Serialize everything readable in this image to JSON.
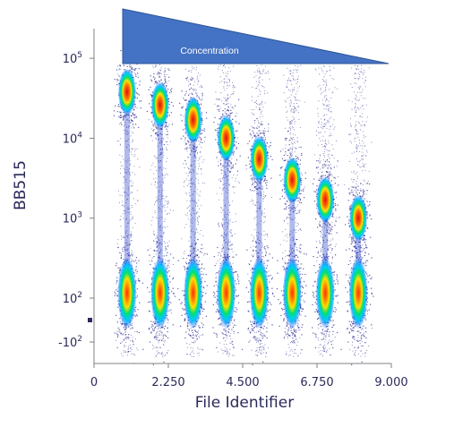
{
  "chart_data": {
    "type": "scatter",
    "subtype": "flow-cytometry-density-dot-plot",
    "xlabel": "File Identifier",
    "ylabel": "BB515",
    "x_scale": "linear",
    "y_scale": "biexponential",
    "xlim": [
      0,
      9000
    ],
    "ylim": [
      -300,
      300000
    ],
    "x_ticks": [
      {
        "value": 0,
        "label": "0"
      },
      {
        "value": 2250,
        "label": "2.250"
      },
      {
        "value": 4500,
        "label": "4.500"
      },
      {
        "value": 6750,
        "label": "6.750"
      },
      {
        "value": 9000,
        "label": "9.000"
      }
    ],
    "y_ticks": [
      {
        "value": 100000,
        "base": "10",
        "exp": "5"
      },
      {
        "value": 10000,
        "base": "10",
        "exp": "4"
      },
      {
        "value": 1000,
        "base": "10",
        "exp": "3"
      },
      {
        "value": 100,
        "base": "10",
        "exp": "2"
      },
      {
        "value": -100,
        "base": "-10",
        "exp": "2"
      }
    ],
    "annotation": {
      "text": "Concentration",
      "shape": "decreasing-wedge",
      "color": "#4472c4"
    },
    "grid": false,
    "legend": "none",
    "populations": [
      {
        "x": 1000,
        "negative_median": 110,
        "positive_median": 38000
      },
      {
        "x": 2000,
        "negative_median": 110,
        "positive_median": 26000
      },
      {
        "x": 3000,
        "negative_median": 110,
        "positive_median": 17000
      },
      {
        "x": 4000,
        "negative_median": 110,
        "positive_median": 10000
      },
      {
        "x": 5000,
        "negative_median": 110,
        "positive_median": 5500
      },
      {
        "x": 6000,
        "negative_median": 110,
        "positive_median": 3000
      },
      {
        "x": 7000,
        "negative_median": 110,
        "positive_median": 1700
      },
      {
        "x": 8000,
        "negative_median": 110,
        "positive_median": 1000
      }
    ],
    "density_colors": [
      "#1a1a8c",
      "#0060ff",
      "#00c8ff",
      "#00e070",
      "#ffe000",
      "#ff7000",
      "#e01010"
    ]
  }
}
